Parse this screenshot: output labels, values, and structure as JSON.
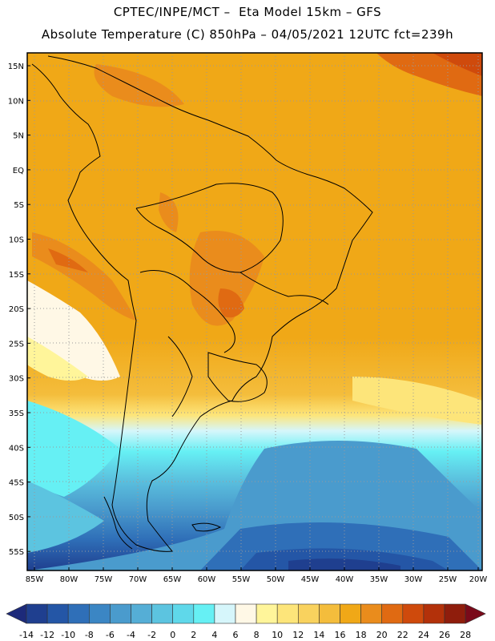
{
  "header": {
    "line1": "CPTEC/INPE/MCT –  Eta Model 15km – GFS",
    "line2": "Absolute Temperature (C) 850hPa – 04/05/2021 12UTC fct=239h"
  },
  "map": {
    "lat_labels": [
      "15N",
      "10N",
      "5N",
      "EQ",
      "5S",
      "10S",
      "15S",
      "20S",
      "25S",
      "30S",
      "35S",
      "40S",
      "45S",
      "50S",
      "55S"
    ],
    "lon_labels": [
      "85W",
      "80W",
      "75W",
      "70W",
      "65W",
      "60W",
      "55W",
      "50W",
      "45W",
      "40W",
      "35W",
      "30W",
      "25W",
      "20W"
    ]
  },
  "colorbar": {
    "labels": [
      "-14",
      "-12",
      "-10",
      "-8",
      "-6",
      "-4",
      "-2",
      "0",
      "2",
      "4",
      "6",
      "8",
      "10",
      "12",
      "14",
      "16",
      "18",
      "20",
      "22",
      "24",
      "26",
      "28"
    ],
    "colors": [
      "#1f3f8f",
      "#2456a6",
      "#2f6fb8",
      "#3b86c4",
      "#4a9bcd",
      "#55aed6",
      "#5cc4e0",
      "#5fd8ea",
      "#66f0f4",
      "#d6f6fb",
      "#fff8e6",
      "#fff59a",
      "#fde57a",
      "#f9d25e",
      "#f4bd3c",
      "#f0a817",
      "#ea8c1c",
      "#e06a12",
      "#cf4a0c",
      "#b3310a",
      "#8f1d0c"
    ],
    "low_arrow_color": "#1d2a7a",
    "high_arrow_color": "#7a0a1a"
  }
}
